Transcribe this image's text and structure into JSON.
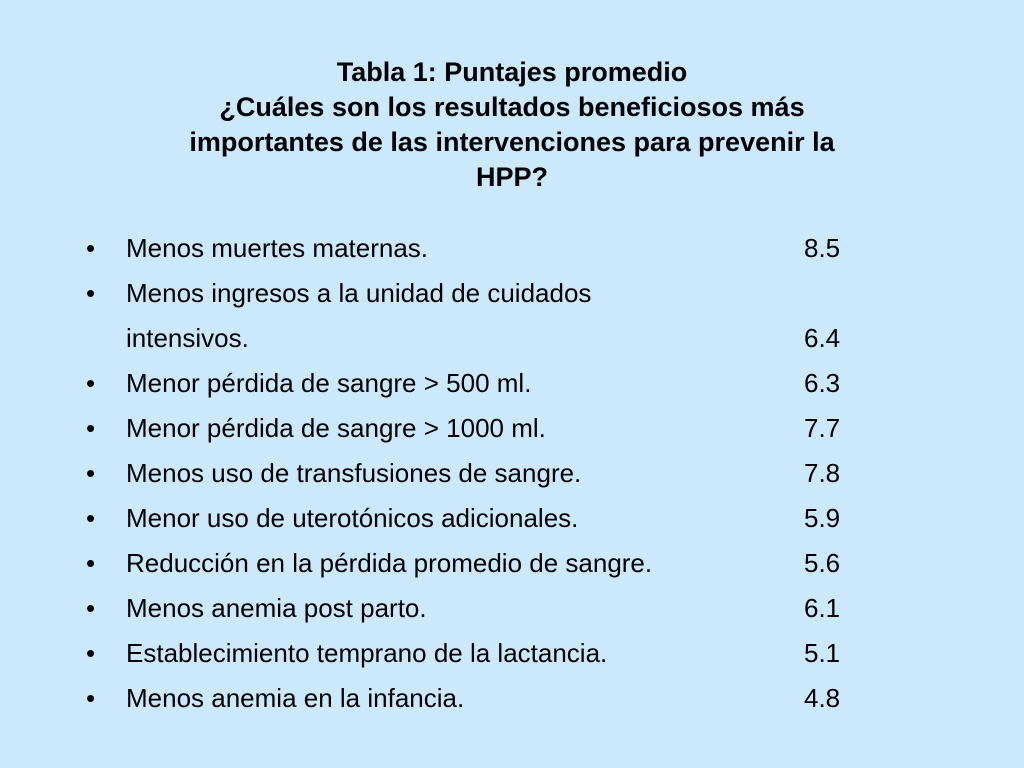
{
  "title": {
    "line1": "Tabla 1: Puntajes promedio",
    "line2": "¿Cuáles son los resultados beneficiosos más",
    "line3": "importantes de las intervenciones para prevenir la",
    "line4": "HPP?"
  },
  "bullet_glyph": "•",
  "items": [
    {
      "text": "Menos muertes maternas.",
      "score": "8.5"
    },
    {
      "text": "Menos ingresos a la unidad de cuidados intensivos.",
      "score": "6.4"
    },
    {
      "text": "Menor pérdida de sangre > 500 ml.",
      "score": "6.3"
    },
    {
      "text": "Menor pérdida de sangre > 1000 ml.",
      "score": "7.7"
    },
    {
      "text": "Menos uso de transfusiones de sangre.",
      "score": "7.8"
    },
    {
      "text": "Menor uso de uterotónicos adicionales.",
      "score": "5.9"
    },
    {
      "text": "Reducción en la pérdida promedio de sangre.",
      "score": "5.6"
    },
    {
      "text": "Menos anemia post parto.",
      "score": "6.1"
    },
    {
      "text": "Establecimiento temprano de la lactancia.",
      "score": "5.1"
    },
    {
      "text": "Menos anemia en la infancia.",
      "score": "4.8"
    }
  ],
  "colors": {
    "background": "#cce8fc",
    "text": "#000000"
  }
}
